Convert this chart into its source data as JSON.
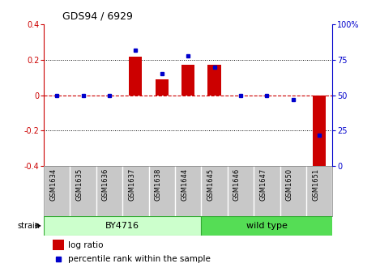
{
  "title": "GDS94 / 6929",
  "samples": [
    "GSM1634",
    "GSM1635",
    "GSM1636",
    "GSM1637",
    "GSM1638",
    "GSM1644",
    "GSM1645",
    "GSM1646",
    "GSM1647",
    "GSM1650",
    "GSM1651"
  ],
  "log_ratio": [
    0.0,
    0.0,
    0.0,
    0.22,
    0.09,
    0.17,
    0.17,
    0.0,
    0.0,
    0.0,
    -0.43
  ],
  "percentile": [
    50,
    50,
    50,
    82,
    65,
    78,
    70,
    50,
    50,
    47,
    22
  ],
  "ylim": [
    -0.4,
    0.4
  ],
  "y2lim": [
    0,
    100
  ],
  "yticks": [
    -0.4,
    -0.2,
    0.0,
    0.2,
    0.4
  ],
  "y2ticks": [
    0,
    25,
    50,
    75,
    100
  ],
  "y2ticklabels": [
    "0",
    "25",
    "50",
    "75",
    "100%"
  ],
  "ytick_labels": [
    "-0.4",
    "-0.2",
    "0",
    "0.2",
    "0.4"
  ],
  "bar_color": "#cc0000",
  "dot_color": "#0000cc",
  "zero_line_color": "#cc0000",
  "grid_color": "#000000",
  "by4716_color": "#ccffcc",
  "wildtype_color": "#55dd55",
  "by4716_label": "BY4716",
  "wildtype_label": "wild type",
  "n_by4716": 6,
  "strain_label": "strain",
  "legend_log_ratio": "log ratio",
  "legend_percentile": "percentile rank within the sample",
  "bar_width": 0.5
}
